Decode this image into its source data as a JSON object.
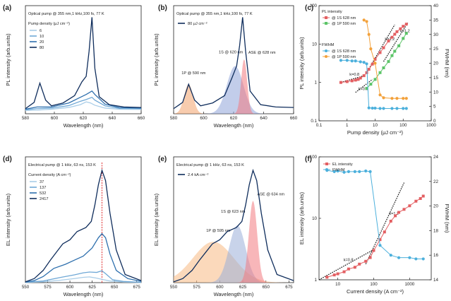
{
  "chart_data": [
    {
      "id": "a",
      "letter": "(a)",
      "type": "line",
      "title": "Optical pump @ 355 nm,1 kHz,100 fs, 77 K",
      "xlabel": "Wavelength (nm)",
      "ylabel": "PL intensity (arb.units)",
      "xlim": [
        580,
        660
      ],
      "xticks": [
        580,
        600,
        620,
        640,
        660
      ],
      "legend_title": "Pump density (μJ cm⁻²)",
      "series": [
        {
          "name": "6",
          "color": "#a9cde8",
          "points": [
            [
              580,
              0.3
            ],
            [
              588,
              0.32
            ],
            [
              598,
              0.4
            ],
            [
              610,
              0.55
            ],
            [
              618,
              0.8
            ],
            [
              622,
              1.05
            ],
            [
              625,
              0.95
            ],
            [
              628,
              0.75
            ],
            [
              635,
              0.5
            ],
            [
              645,
              0.4
            ],
            [
              660,
              0.38
            ]
          ]
        },
        {
          "name": "10",
          "color": "#6fa8d6",
          "points": [
            [
              580,
              0.35
            ],
            [
              588,
              0.45
            ],
            [
              598,
              0.5
            ],
            [
              610,
              0.72
            ],
            [
              618,
              1.1
            ],
            [
              622,
              1.25
            ],
            [
              626,
              1.45
            ],
            [
              628,
              1.2
            ],
            [
              635,
              0.7
            ],
            [
              645,
              0.48
            ],
            [
              660,
              0.45
            ]
          ]
        },
        {
          "name": "20",
          "color": "#2e6fad",
          "points": [
            [
              580,
              0.4
            ],
            [
              588,
              0.6
            ],
            [
              598,
              0.6
            ],
            [
              610,
              0.95
            ],
            [
              618,
              1.45
            ],
            [
              622,
              1.7
            ],
            [
              626,
              2.0
            ],
            [
              628,
              1.7
            ],
            [
              635,
              0.85
            ],
            [
              645,
              0.55
            ],
            [
              660,
              0.5
            ]
          ]
        },
        {
          "name": "80",
          "color": "#0f2d5c",
          "points": [
            [
              580,
              0.45
            ],
            [
              586,
              1.0
            ],
            [
              590,
              2.7
            ],
            [
              594,
              1.2
            ],
            [
              598,
              0.7
            ],
            [
              606,
              0.95
            ],
            [
              614,
              1.6
            ],
            [
              619,
              2.8
            ],
            [
              622,
              3.3
            ],
            [
              624,
              5.5
            ],
            [
              626,
              8.5
            ],
            [
              628,
              4.0
            ],
            [
              631,
              1.5
            ],
            [
              638,
              0.8
            ],
            [
              648,
              0.6
            ],
            [
              660,
              0.55
            ]
          ]
        }
      ]
    },
    {
      "id": "b",
      "letter": "(b)",
      "type": "line",
      "title": "Optical pump @ 355 nm,1 kHz,100 fs, 77 K",
      "xlabel": "Wavelength (nm)",
      "ylabel": "PL intensity (arb.units)",
      "xlim": [
        580,
        660
      ],
      "xticks": [
        580,
        600,
        620,
        640,
        660
      ],
      "legend": "80 μJ cm⁻²",
      "series": [
        {
          "name": "80 μJ cm⁻²",
          "color": "#0f2d5c",
          "points": [
            [
              580,
              0.45
            ],
            [
              586,
              1.0
            ],
            [
              590,
              2.6
            ],
            [
              594,
              1.2
            ],
            [
              598,
              0.7
            ],
            [
              606,
              0.95
            ],
            [
              614,
              1.6
            ],
            [
              619,
              3.2
            ],
            [
              622,
              4.2
            ],
            [
              624,
              6.0
            ],
            [
              626,
              8.5
            ],
            [
              628,
              5.5
            ],
            [
              631,
              2.0
            ],
            [
              638,
              0.8
            ],
            [
              648,
              0.6
            ],
            [
              660,
              0.55
            ]
          ]
        }
      ],
      "fills": [
        {
          "label": "1P @ 590 nm",
          "center": 590,
          "sigma": 3,
          "amp": 2.6,
          "color": "#f3a36b"
        },
        {
          "label": "1S @ 620 nm",
          "center": 621,
          "sigma": 5.5,
          "amp": 4.2,
          "color": "#8fa4d8"
        },
        {
          "label": "ASE @ 628 nm",
          "center": 627,
          "sigma": 2,
          "amp": 4.8,
          "color": "#f27a80"
        }
      ]
    },
    {
      "id": "c",
      "letter": "(c)",
      "type": "scatter",
      "xlabel": "Pump density (μJ cm⁻²)",
      "ylabel": "PL intensity (arb.units)",
      "y2label": "FWHM (nm)",
      "xlog": true,
      "xlim": [
        0.1,
        1000
      ],
      "xticks": [
        0.1,
        1,
        10,
        100,
        1000
      ],
      "ylog": true,
      "ylim": [
        0.1,
        100
      ],
      "yticks": [
        0.1,
        1,
        10,
        100
      ],
      "y2lim": [
        0,
        40
      ],
      "y2ticks": [
        0,
        5,
        10,
        15,
        20,
        25,
        30,
        35,
        40
      ],
      "legend": {
        "group1": "PL intensity",
        "group2": "FWHM",
        "entries": [
          "@ 1S 628 nm",
          "@ 1P 590 nm",
          "@ 1S 628 nm",
          "@ 1P 590 nm"
        ]
      },
      "series": [
        {
          "name": "PL @ 1S 628 nm",
          "axis": "y",
          "color": "#e35f62",
          "marker": "square",
          "x": [
            0.6,
            1,
            1.5,
            2,
            2.5,
            3,
            4,
            5,
            6,
            8,
            10,
            15,
            20,
            30,
            40,
            50,
            60,
            80,
            100,
            130
          ],
          "y": [
            1.0,
            1.05,
            1.1,
            1.15,
            1.2,
            1.3,
            1.5,
            1.8,
            2.2,
            3.0,
            4.0,
            6.0,
            8.0,
            12,
            15,
            18,
            21,
            25,
            29,
            33
          ]
        },
        {
          "name": "PL @ 1P 590 nm",
          "axis": "y",
          "color": "#5cc468",
          "marker": "square",
          "x": [
            5,
            7,
            10,
            15,
            20,
            30,
            40,
            50,
            70,
            100,
            130
          ],
          "y": [
            0.7,
            0.9,
            1.2,
            1.8,
            2.4,
            3.5,
            5,
            6.5,
            9,
            14,
            19
          ]
        },
        {
          "name": "FWHM @ 1S 628 nm",
          "axis": "y2",
          "color": "#4cb0dc",
          "marker": "circle",
          "x": [
            0.6,
            1,
            1.5,
            2,
            3,
            4,
            5,
            6,
            8,
            10,
            15,
            20,
            40,
            60,
            100,
            130
          ],
          "y": [
            21,
            21,
            20.8,
            20.8,
            20.5,
            20.3,
            19.8,
            4.5,
            4.4,
            4.4,
            4.3,
            4.3,
            4.3,
            4.3,
            4.3,
            4.3
          ]
        },
        {
          "name": "FWHM @ 1P 590 nm",
          "axis": "y2",
          "color": "#f3a13b",
          "marker": "circle",
          "x": [
            4,
            5,
            6,
            7,
            10,
            15,
            20,
            40,
            60,
            100,
            130
          ],
          "y": [
            35,
            34.5,
            30,
            25,
            20,
            9,
            8,
            7.8,
            7.8,
            7.8,
            7.8
          ]
        }
      ],
      "fits": [
        {
          "label": "k=0.8",
          "x": [
            0.6,
            4
          ],
          "y": [
            1.0,
            1.5
          ]
        },
        {
          "label": "k=1.2",
          "x": [
            5,
            50
          ],
          "y": [
            1.8,
            32
          ]
        },
        {
          "label": "k=0.9",
          "x": [
            2,
            8
          ],
          "y": [
            0.55,
            1.2
          ]
        },
        {
          "label": "k=1.2",
          "x": [
            20,
            150
          ],
          "y": [
            3.5,
            37
          ]
        }
      ]
    },
    {
      "id": "d",
      "letter": "(d)",
      "type": "line",
      "title": "Electrical pump @ 1 kHz, 63 ns, 153 K",
      "xlabel": "Wavelength (nm)",
      "ylabel": "EL intensity (arb.units)",
      "xlim": [
        550,
        680
      ],
      "xticks": [
        550,
        575,
        600,
        625,
        650,
        675
      ],
      "legend_title": "Current density (A cm⁻²)",
      "marker_line": 636,
      "series": [
        {
          "name": "37",
          "color": "#a9cde8",
          "points": [
            [
              550,
              0.05
            ],
            [
              570,
              0.2
            ],
            [
              590,
              0.6
            ],
            [
              605,
              1.0
            ],
            [
              615,
              1.3
            ],
            [
              622,
              1.4
            ],
            [
              630,
              1.1
            ],
            [
              636,
              0.8
            ],
            [
              645,
              0.4
            ],
            [
              660,
              0.15
            ],
            [
              680,
              0.05
            ]
          ]
        },
        {
          "name": "137",
          "color": "#6fa8d6",
          "points": [
            [
              550,
              0.08
            ],
            [
              570,
              0.4
            ],
            [
              590,
              1.3
            ],
            [
              605,
              1.9
            ],
            [
              615,
              2.4
            ],
            [
              622,
              2.6
            ],
            [
              630,
              2.5
            ],
            [
              636,
              2.9
            ],
            [
              640,
              2.2
            ],
            [
              648,
              0.7
            ],
            [
              660,
              0.3
            ],
            [
              680,
              0.08
            ]
          ]
        },
        {
          "name": "532",
          "color": "#2e6fad",
          "points": [
            [
              550,
              0.15
            ],
            [
              560,
              0.5
            ],
            [
              570,
              1.5
            ],
            [
              582,
              3.5
            ],
            [
              595,
              4.5
            ],
            [
              605,
              5.5
            ],
            [
              615,
              6.5
            ],
            [
              625,
              8.5
            ],
            [
              632,
              11
            ],
            [
              636,
              12
            ],
            [
              640,
              11
            ],
            [
              645,
              7
            ],
            [
              652,
              3
            ],
            [
              665,
              1
            ],
            [
              680,
              0.3
            ]
          ]
        },
        {
          "name": "2417",
          "color": "#0f2d5c",
          "points": [
            [
              550,
              0.2
            ],
            [
              560,
              1.0
            ],
            [
              570,
              3.0
            ],
            [
              578,
              5.5
            ],
            [
              585,
              7.5
            ],
            [
              592,
              9.5
            ],
            [
              600,
              10.5
            ],
            [
              608,
              12.5
            ],
            [
              618,
              13.5
            ],
            [
              624,
              15
            ],
            [
              628,
              19
            ],
            [
              632,
              24
            ],
            [
              636,
              27.5
            ],
            [
              640,
              25
            ],
            [
              645,
              17
            ],
            [
              652,
              8
            ],
            [
              662,
              2
            ],
            [
              680,
              0.5
            ]
          ]
        }
      ]
    },
    {
      "id": "e",
      "letter": "(e)",
      "type": "line",
      "title": "Electrical pump @ 1 kHz, 63 ns, 153 K",
      "xlabel": "Wavelength (nm)",
      "ylabel": "EL intensity (arb.units)",
      "xlim": [
        550,
        680
      ],
      "xticks": [
        550,
        575,
        600,
        625,
        650,
        675
      ],
      "legend": "2.4 kA cm⁻²",
      "series": [
        {
          "name": "2.4 kA cm⁻²",
          "color": "#0f2d5c",
          "points": [
            [
              550,
              0.2
            ],
            [
              560,
              1.0
            ],
            [
              570,
              3.0
            ],
            [
              578,
              5.5
            ],
            [
              585,
              7.5
            ],
            [
              592,
              9.5
            ],
            [
              600,
              10.5
            ],
            [
              608,
              12.5
            ],
            [
              618,
              13.5
            ],
            [
              624,
              15
            ],
            [
              628,
              19
            ],
            [
              632,
              24
            ],
            [
              636,
              27.5
            ],
            [
              640,
              25
            ],
            [
              645,
              17
            ],
            [
              652,
              8
            ],
            [
              662,
              2
            ],
            [
              680,
              0.5
            ]
          ]
        }
      ],
      "fills": [
        {
          "label": "1P @ 595 nm",
          "center": 593,
          "sigma": 22,
          "amp": 10,
          "color": "#f7b983"
        },
        {
          "label": "1S @ 623 nm",
          "center": 619,
          "sigma": 9,
          "amp": 14,
          "color": "#9aaed9"
        },
        {
          "label": "ASE @ 634 nm",
          "center": 636,
          "sigma": 4.5,
          "amp": 20,
          "color": "#f27a80"
        }
      ]
    },
    {
      "id": "f",
      "letter": "(f)",
      "type": "scatter",
      "xlabel": "Current density (A cm⁻²)",
      "ylabel": "EL intensity (arb.units)",
      "y2label": "FWHM (nm)",
      "xlog": true,
      "xlim": [
        3,
        4000
      ],
      "xticks": [
        10,
        100,
        1000
      ],
      "ylog": true,
      "ylim": [
        1,
        100
      ],
      "yticks": [
        1,
        10,
        100
      ],
      "y2lim": [
        14,
        24
      ],
      "y2ticks": [
        14,
        16,
        18,
        20,
        22,
        24
      ],
      "legend": [
        "EL intensity",
        "FWHM"
      ],
      "series": [
        {
          "name": "EL intensity",
          "axis": "y",
          "color": "#e35f62",
          "marker": "square",
          "x": [
            5,
            8,
            10,
            15,
            20,
            30,
            40,
            60,
            80,
            100,
            150,
            200,
            300,
            400,
            500,
            700,
            1000,
            1500,
            2000,
            2400
          ],
          "y": [
            1.1,
            1.2,
            1.25,
            1.35,
            1.5,
            1.6,
            1.8,
            2.0,
            2.3,
            3.0,
            4.5,
            6,
            9,
            11,
            12.5,
            14,
            16,
            19,
            21,
            23
          ]
        },
        {
          "name": "FWHM",
          "axis": "y2",
          "color": "#4cb0dc",
          "marker": "circle",
          "x": [
            5,
            8,
            10,
            15,
            20,
            30,
            40,
            60,
            80,
            150,
            300,
            500,
            1000,
            1500,
            2400
          ],
          "y": [
            22.9,
            22.8,
            22.85,
            22.75,
            22.8,
            22.8,
            22.8,
            22.85,
            22.8,
            16.8,
            16.0,
            15.8,
            15.8,
            15.7,
            15.7
          ]
        }
      ],
      "fits": [
        {
          "label": "k=0.8",
          "x": [
            3,
            100
          ],
          "y": [
            1.0,
            3.1
          ]
        },
        {
          "label": "k=1.2",
          "x": [
            60,
            700
          ],
          "y": [
            1.8,
            38
          ]
        }
      ]
    }
  ]
}
